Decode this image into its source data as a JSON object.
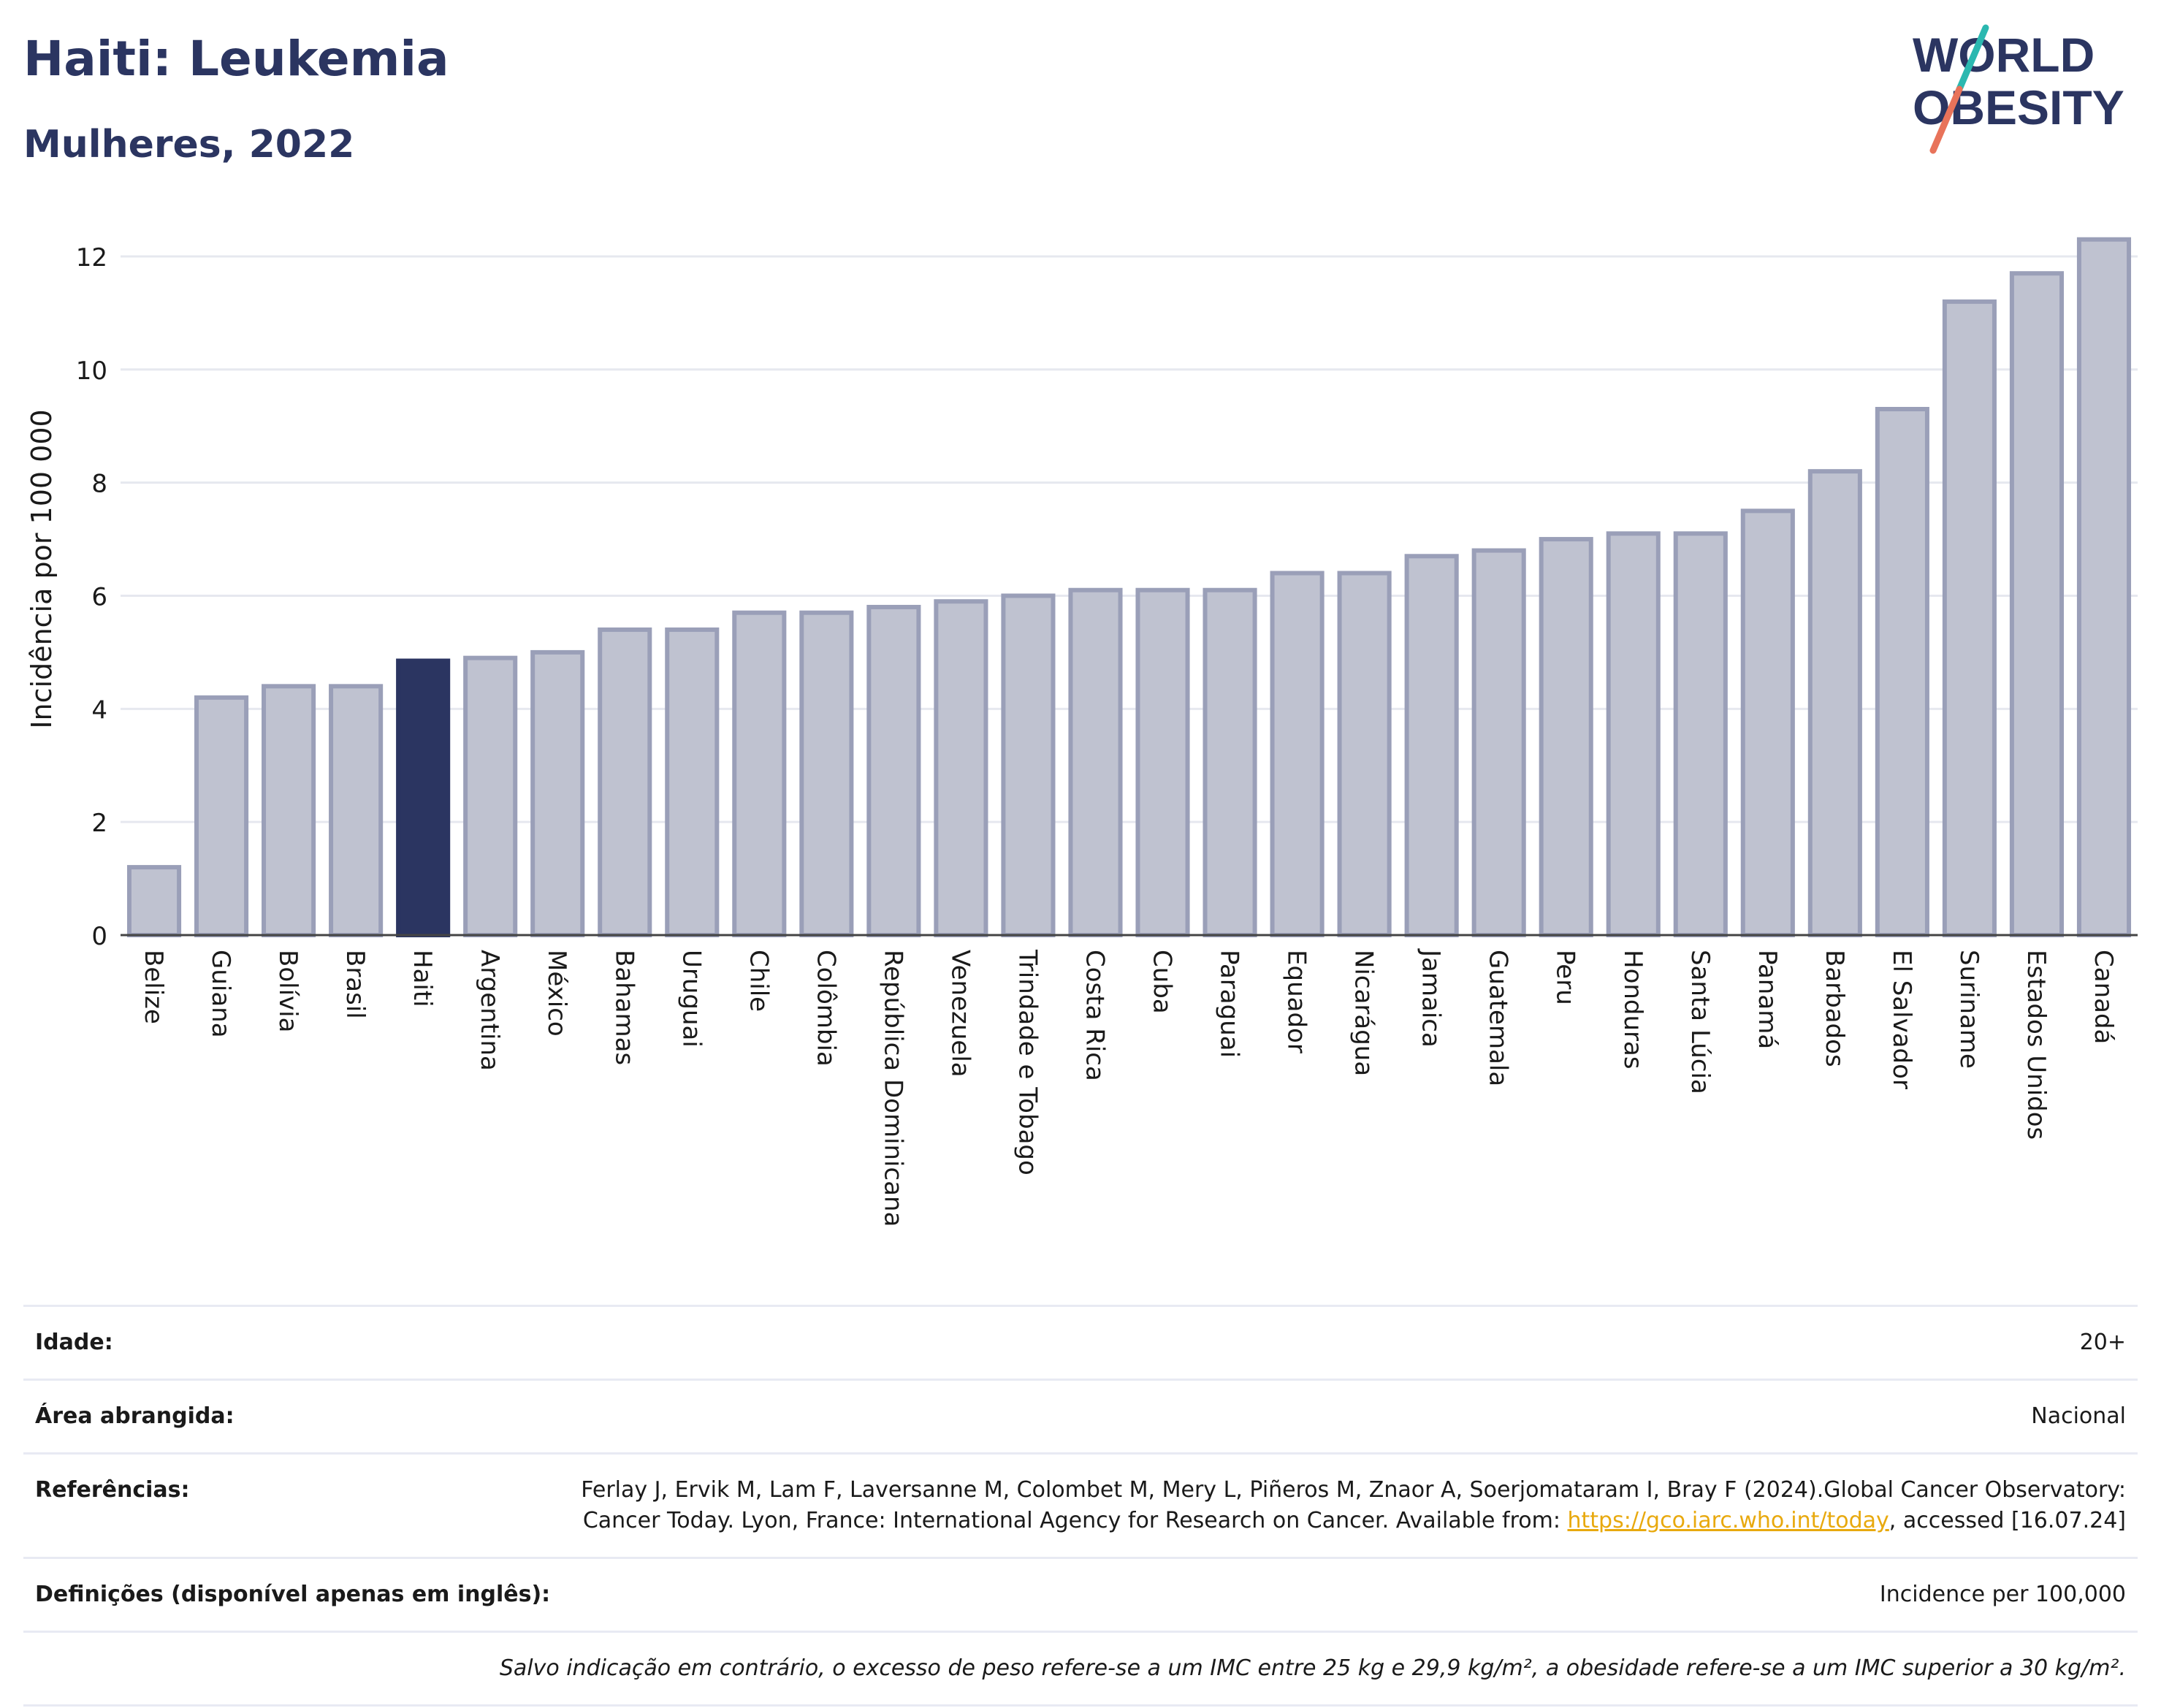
{
  "header": {
    "title": "Haiti: Leukemia",
    "subtitle": "Mulheres, 2022"
  },
  "logo": {
    "line1": "WORLD",
    "line2": "OBESITY",
    "text_color": "#2b3561",
    "slash_color_top": "#2bb8b0",
    "slash_color_bottom": "#e8735a"
  },
  "colors": {
    "highlight": "#2b3561",
    "bar_fill": "#bfc2d0",
    "bar_stroke": "#9a9fb8",
    "grid": "#e6e8ef"
  },
  "chart_data": {
    "type": "bar",
    "ylabel": "Incidência por 100 000",
    "xlabel": "",
    "ylim": [
      0,
      12.4
    ],
    "yticks": [
      0,
      2,
      4,
      6,
      8,
      10,
      12
    ],
    "grid": true,
    "highlight_category": "Haiti",
    "categories": [
      "Belize",
      "Guiana",
      "Bolívia",
      "Brasil",
      "Haiti",
      "Argentina",
      "México",
      "Bahamas",
      "Uruguai",
      "Chile",
      "Colômbia",
      "República Dominicana",
      "Venezuela",
      "Trindade e Tobago",
      "Costa Rica",
      "Cuba",
      "Paraguai",
      "Equador",
      "Nicarágua",
      "Jamaica",
      "Guatemala",
      "Peru",
      "Honduras",
      "Santa Lúcia",
      "Panamá",
      "Barbados",
      "El Salvador",
      "Suriname",
      "Estados Unidos",
      "Canadá"
    ],
    "values": [
      1.2,
      4.2,
      4.4,
      4.4,
      4.85,
      4.9,
      5.0,
      5.4,
      5.4,
      5.7,
      5.7,
      5.8,
      5.9,
      6.0,
      6.1,
      6.1,
      6.1,
      6.4,
      6.4,
      6.7,
      6.8,
      7.0,
      7.1,
      7.1,
      7.5,
      8.2,
      9.3,
      11.2,
      11.7,
      12.3
    ]
  },
  "meta": {
    "age_label": "Idade:",
    "age_value": "20+",
    "area_label": "Área abrangida:",
    "area_value": "Nacional",
    "ref_label": "Referências:",
    "ref_text_1": "Ferlay J, Ervik M, Lam F, Laversanne M, Colombet M, Mery L, Piñeros M, Znaor A, Soerjomataram I, Bray F (2024).Global Cancer Observatory: Cancer Today. Lyon, France: International Agency for Research on Cancer. Available from: ",
    "ref_link": "https://gco.iarc.who.int/today",
    "ref_text_2": ", accessed [16.07.24]",
    "def_label": "Definições (disponível apenas em inglês):",
    "def_value": "Incidence per 100,000",
    "note": "Salvo indicação em contrário, o excesso de peso refere-se a um IMC entre 25 kg e 29,9 kg/m², a obesidade refere-se a um IMC superior a 30 kg/m²."
  }
}
